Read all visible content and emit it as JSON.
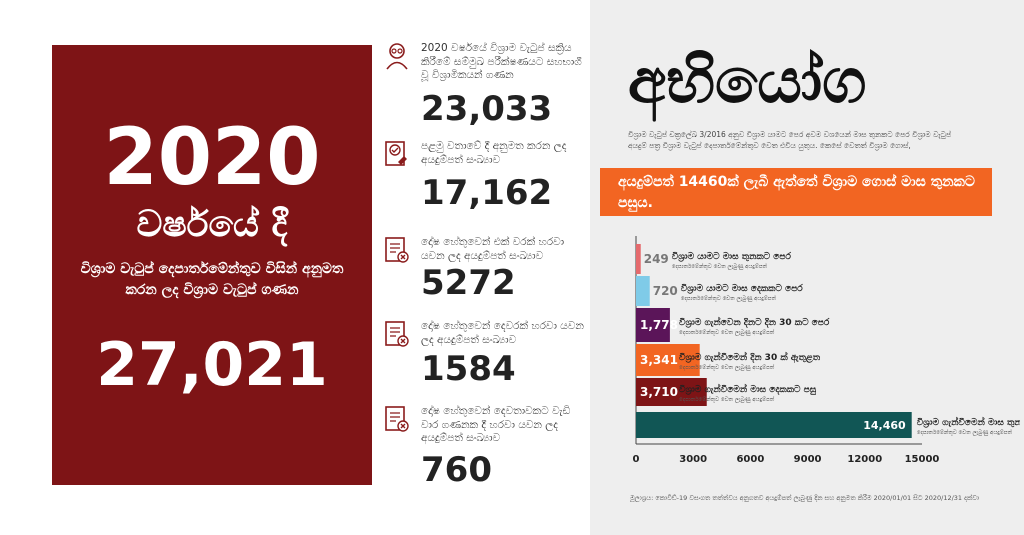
{
  "card": {
    "year": "2020",
    "phrase": "වර්ෂයේ දී",
    "description": "විශ්‍රාම වැටුප් දෙපාර්තමේන්තුව විසින් අනුමත කරන ලද විශ්‍රාම වැටුප් ගණන",
    "total": "27,021"
  },
  "stats": [
    {
      "icon": "elderly-person-icon",
      "label": "2020 වර්ෂයේ විශ්‍රාම වැටුප් සක්‍රිය කිරීමේ සම්මුඛ පරීක්ෂණයට සහභාගී වූ විශ්‍රාමිකයන් ගණන",
      "value": "23,033"
    },
    {
      "icon": "approved-document-icon",
      "label": "පළමු වතාවේ දී අනුමත කරන ලද අයදුම්පත් සංඛ්‍යාව",
      "value": "17,162"
    },
    {
      "icon": "rejected-document-icon",
      "label": "දෝෂ හේතුවෙන් එක් වරක් හරවා යවන ලද අයදුම්පත් සංඛ්‍යාව",
      "value": "5272"
    },
    {
      "icon": "rejected-document-icon",
      "label": "දෝෂ හේතුවෙන් දෙවරක් හරවා යවන ලද අයදුම්පත් සංඛ්‍යාව",
      "value": "1584"
    },
    {
      "icon": "rejected-document-icon",
      "label": "දෝෂ හේතුවෙන් දෙවතාවකට වැඩි වාර ගණනක දී හරවා යවන ලද අයදුම්පත් සංඛ්‍යාව",
      "value": "760"
    }
  ],
  "headline": "අභියෝග",
  "note": "විශ්‍රාම වැටුප් චක්‍රලේඛ 3/2016 අනුව විශ්‍රාම යාමට පෙර අවම වශයෙන් මාස තුනකට පෙර විශ්‍රාම වැටුප් අයදුම් පත්‍ර විශ්‍රාම වැටුප් දෙපාර්තමේන්තුව වෙත එවිය යුතුය. කෙසේ වෙතත් විශ්‍රාම ගොස්,",
  "banner": "අයදුම්පත් 14460ක් ලැබී ඇත්තේ විශ්‍රාම ගොස් මාස තුනකට පසුය.",
  "colors": {
    "maroon": "#7e1416",
    "orange": "#f26522",
    "teal": "#115655",
    "purple": "#5b1559",
    "sky": "#7fcbe8",
    "pink": "#e56a6d"
  },
  "chart_data": {
    "type": "bar",
    "orientation": "horizontal",
    "categories": [
      "විශ්‍රාම යාමට මාස තුනකට පෙර",
      "විශ්‍රාම යාමට මාස දෙකකට පෙර",
      "විශ්‍රාම ගැන්වෙන දිනට දින 30 කට පෙර",
      "විශ්‍රාම ගැන්වීමෙන් දින 30 ක් ඇතුළත",
      "විශ්‍රාම ගැන්වීමෙන් මාස දෙකකට පසු",
      "විශ්‍රාම ගැන්වීමෙන් මාස තුනකට පසු"
    ],
    "values": [
      249,
      720,
      1778,
      3341,
      3710,
      14460
    ],
    "value_labels": [
      "249",
      "720",
      "1,778",
      "3,341",
      "3,710",
      "14,460"
    ],
    "sub_labels": [
      "දෙපාර්තමේන්තුව වෙත ලැබුණු අයදුම්පත්",
      "දෙපාර්තමේන්තුව වෙත ලැබුණු අයදුම්පත්",
      "දෙපාර්තමේන්තුව වෙත ලැබුණු අයදුම්පත්",
      "දෙපාර්තමේන්තුව වෙත ලැබුණු අයදුම්පත්",
      "දෙපාර්තමේන්තුව වෙත ලැබුණු අයදුම්පත්",
      "දෙපාර්තමේන්තුව වෙත ලැබුණු අයදුම්පත්"
    ],
    "bar_colors": [
      "#e56a6d",
      "#7fcbe8",
      "#5b1559",
      "#f26522",
      "#7e1416",
      "#115655"
    ],
    "xlim": [
      0,
      15000
    ],
    "xticks": [
      "0",
      "3000",
      "6000",
      "9000",
      "12000",
      "15000"
    ],
    "title": "",
    "xlabel": "",
    "ylabel": ""
  },
  "footnote": "මූලාශ්‍රය: කොවිඩ්-19 වසංගත තත්ත්වය අනුගතව අයදුම්පත් ලැබුණු දින සහ අනුමත කිරීම 2020/01/01 සිට 2020/12/31 දක්වා"
}
